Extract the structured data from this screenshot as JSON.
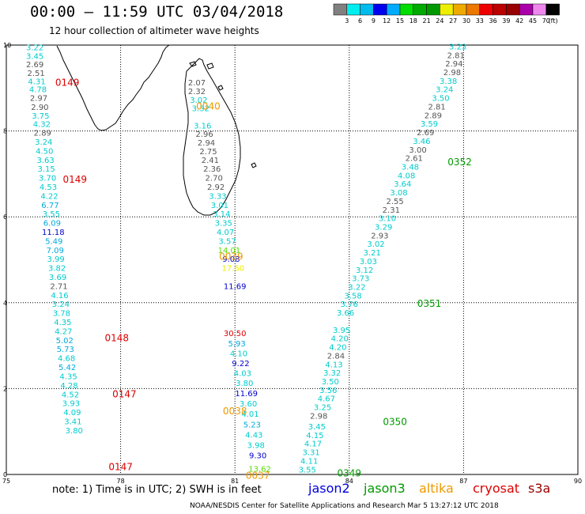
{
  "header": {
    "title": "00:00 – 11:59 UTC 03/04/2018",
    "subtitle": "12 hour collection of altimeter wave heights"
  },
  "colorbar": {
    "unit": "(ft)",
    "labels": [
      "3",
      "6",
      "9",
      "12",
      "15",
      "18",
      "21",
      "24",
      "27",
      "30",
      "33",
      "36",
      "39",
      "42",
      "45",
      "70"
    ],
    "colors": [
      "#808080",
      "#00eeee",
      "#00bbee",
      "#0000ee",
      "#00aaff",
      "#00dd00",
      "#00aa00",
      "#009900",
      "#eeee00",
      "#eeaa00",
      "#ee7700",
      "#ee0000",
      "#bb0000",
      "#990000",
      "#aa00aa",
      "#ee88ee",
      "#000000"
    ]
  },
  "axes": {
    "x_ticks": [
      "75",
      "78",
      "81",
      "84",
      "87",
      "90"
    ],
    "y_ticks": [
      "0",
      "2",
      "4",
      "6",
      "8",
      "10"
    ],
    "x_range": [
      75,
      90
    ],
    "y_range": [
      0,
      10
    ]
  },
  "legend": {
    "note": "note: 1) Time is in UTC; 2) SWH is in feet",
    "satellites": [
      {
        "name": "jason2",
        "color": "#0000dd"
      },
      {
        "name": "jason3",
        "color": "#009900"
      },
      {
        "name": "altika",
        "color": "#ee9900"
      },
      {
        "name": "cryosat",
        "color": "#dd0000"
      },
      {
        "name": "s3a",
        "color": "#990000"
      }
    ]
  },
  "footer": "NOAA/NESDIS Center for Satellite Applications and Research    Mar  5 13:27:12 UTC 2018",
  "passes": [
    {
      "label": "0149",
      "lon": 76.6,
      "lat": 9.05,
      "color": "#dd0000"
    },
    {
      "label": "0149",
      "lon": 76.8,
      "lat": 6.8,
      "color": "#dd0000"
    },
    {
      "label": "0148",
      "lon": 77.9,
      "lat": 3.1,
      "color": "#dd0000"
    },
    {
      "label": "0147",
      "lon": 78.1,
      "lat": 1.8,
      "color": "#dd0000"
    },
    {
      "label": "0147",
      "lon": 78.0,
      "lat": 0.1,
      "color": "#dd0000"
    },
    {
      "label": "0040",
      "lon": 80.3,
      "lat": 8.5,
      "color": "#ee9900"
    },
    {
      "label": "0039",
      "lon": 80.9,
      "lat": 5.0,
      "color": "#ee9900"
    },
    {
      "label": "0038",
      "lon": 81.0,
      "lat": 1.4,
      "color": "#ee9900"
    },
    {
      "label": "0037",
      "lon": 81.6,
      "lat": -0.1,
      "color": "#ee9900"
    },
    {
      "label": "0352",
      "lon": 86.9,
      "lat": 7.2,
      "color": "#009900"
    },
    {
      "label": "0351",
      "lon": 86.1,
      "lat": 3.9,
      "color": "#009900"
    },
    {
      "label": "0350",
      "lon": 85.2,
      "lat": 1.15,
      "color": "#009900"
    },
    {
      "label": "0349",
      "lon": 84.0,
      "lat": -0.05,
      "color": "#009900"
    }
  ],
  "tracks": [
    {
      "points": [
        {
          "v": "3.22",
          "lon": 75.75,
          "lat": 9.88,
          "c": "#00cccc"
        },
        {
          "v": "3.45",
          "lon": 75.75,
          "lat": 9.68,
          "c": "#00cccc"
        },
        {
          "v": "2.69",
          "lon": 75.75,
          "lat": 9.48,
          "c": "#555555"
        },
        {
          "v": "2.51",
          "lon": 75.78,
          "lat": 9.28,
          "c": "#555555"
        },
        {
          "v": "4.31",
          "lon": 75.8,
          "lat": 9.09,
          "c": "#00cccc"
        },
        {
          "v": "4.78",
          "lon": 75.83,
          "lat": 8.9,
          "c": "#00cccc"
        },
        {
          "v": "2.97",
          "lon": 75.85,
          "lat": 8.7,
          "c": "#555555"
        },
        {
          "v": "2.90",
          "lon": 75.88,
          "lat": 8.49,
          "c": "#555555"
        },
        {
          "v": "3.75",
          "lon": 75.9,
          "lat": 8.29,
          "c": "#00cccc"
        },
        {
          "v": "4.32",
          "lon": 75.93,
          "lat": 8.09,
          "c": "#00cccc"
        },
        {
          "v": "2.89",
          "lon": 75.95,
          "lat": 7.89,
          "c": "#555555"
        },
        {
          "v": "3.24",
          "lon": 75.98,
          "lat": 7.68,
          "c": "#00cccc"
        },
        {
          "v": "4.50",
          "lon": 76.0,
          "lat": 7.47,
          "c": "#00cccc"
        },
        {
          "v": "3.63",
          "lon": 76.03,
          "lat": 7.26,
          "c": "#00cccc"
        },
        {
          "v": "3.15",
          "lon": 76.05,
          "lat": 7.05,
          "c": "#00cccc"
        },
        {
          "v": "3.70",
          "lon": 76.08,
          "lat": 6.84,
          "c": "#00cccc"
        },
        {
          "v": "4.53",
          "lon": 76.1,
          "lat": 6.63,
          "c": "#00cccc"
        },
        {
          "v": "4.22",
          "lon": 76.13,
          "lat": 6.42,
          "c": "#00cccc"
        },
        {
          "v": "6.77",
          "lon": 76.15,
          "lat": 6.21,
          "c": "#00aadd"
        },
        {
          "v": "3.55",
          "lon": 76.18,
          "lat": 6.0,
          "c": "#00cccc"
        },
        {
          "v": "6.09",
          "lon": 76.2,
          "lat": 5.79,
          "c": "#00aadd"
        },
        {
          "v": "11.18",
          "lon": 76.23,
          "lat": 5.58,
          "c": "#0000cc"
        },
        {
          "v": "5.49",
          "lon": 76.25,
          "lat": 5.37,
          "c": "#00aadd"
        },
        {
          "v": "7.09",
          "lon": 76.28,
          "lat": 5.16,
          "c": "#00aadd"
        },
        {
          "v": "3.99",
          "lon": 76.3,
          "lat": 4.95,
          "c": "#00cccc"
        },
        {
          "v": "3.82",
          "lon": 76.33,
          "lat": 4.74,
          "c": "#00cccc"
        },
        {
          "v": "3.69",
          "lon": 76.35,
          "lat": 4.53,
          "c": "#00cccc"
        },
        {
          "v": "2.71",
          "lon": 76.38,
          "lat": 4.32,
          "c": "#555555"
        },
        {
          "v": "4.16",
          "lon": 76.4,
          "lat": 4.11,
          "c": "#00cccc"
        },
        {
          "v": "3.24",
          "lon": 76.43,
          "lat": 3.9,
          "c": "#00cccc"
        },
        {
          "v": "3.78",
          "lon": 76.45,
          "lat": 3.69,
          "c": "#00cccc"
        },
        {
          "v": "4.35",
          "lon": 76.48,
          "lat": 3.48,
          "c": "#00cccc"
        },
        {
          "v": "4.27",
          "lon": 76.5,
          "lat": 3.27,
          "c": "#00cccc"
        },
        {
          "v": "5.02",
          "lon": 76.53,
          "lat": 3.06,
          "c": "#00aadd"
        },
        {
          "v": "5.73",
          "lon": 76.55,
          "lat": 2.85,
          "c": "#00aadd"
        },
        {
          "v": "4.68",
          "lon": 76.58,
          "lat": 2.64,
          "c": "#00cccc"
        },
        {
          "v": "5.42",
          "lon": 76.6,
          "lat": 2.43,
          "c": "#00aadd"
        },
        {
          "v": "4.35",
          "lon": 76.63,
          "lat": 2.22,
          "c": "#00cccc"
        },
        {
          "v": "4.28",
          "lon": 76.65,
          "lat": 2.01,
          "c": "#00cccc"
        },
        {
          "v": "4.52",
          "lon": 76.68,
          "lat": 1.8,
          "c": "#00cccc"
        },
        {
          "v": "3.93",
          "lon": 76.7,
          "lat": 1.59,
          "c": "#00cccc"
        },
        {
          "v": "4.09",
          "lon": 76.73,
          "lat": 1.38,
          "c": "#00cccc"
        },
        {
          "v": "3.41",
          "lon": 76.75,
          "lat": 1.17,
          "c": "#00cccc"
        },
        {
          "v": "3.80",
          "lon": 76.78,
          "lat": 0.96,
          "c": "#00cccc"
        }
      ]
    }
  ]
}
